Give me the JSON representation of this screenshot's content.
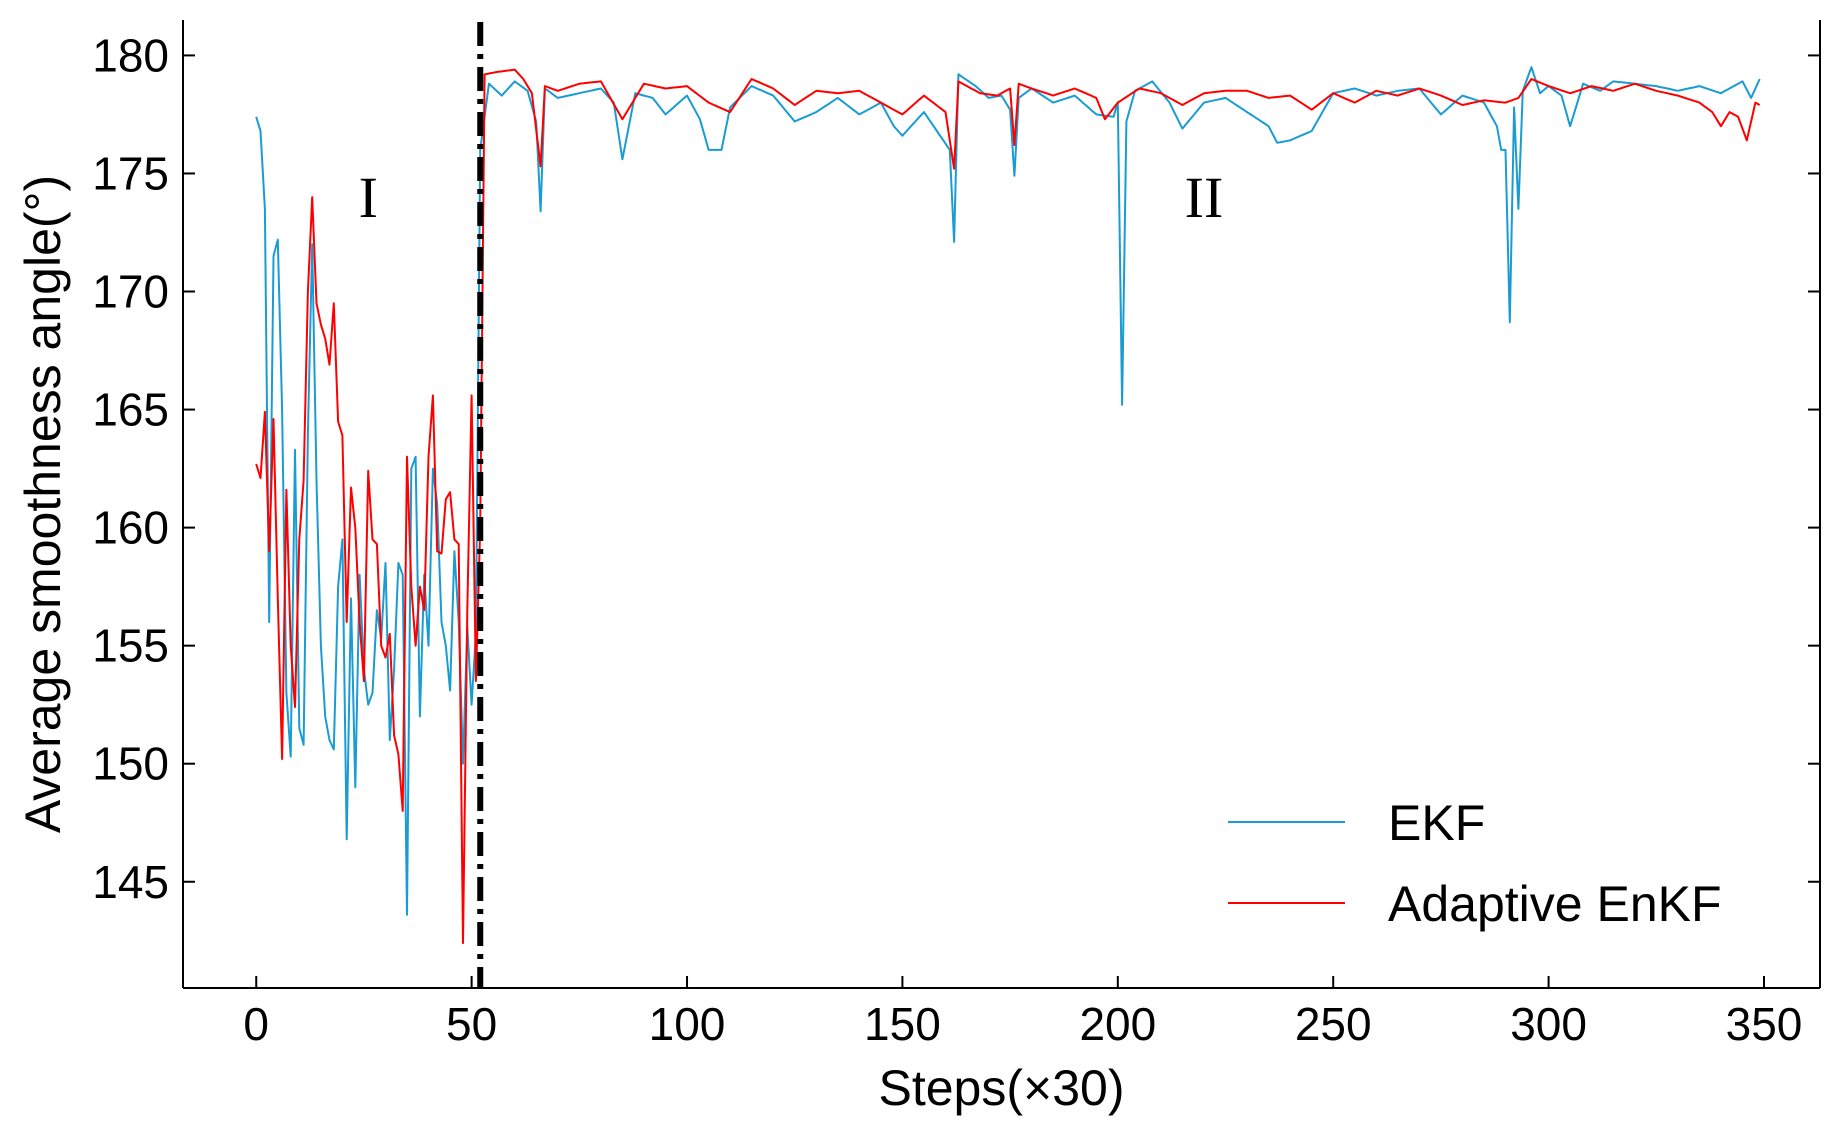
{
  "chart_data": {
    "type": "line",
    "title": "",
    "xlabel": "Steps(×30)",
    "ylabel": "Average smoothness angle(°)",
    "xlim": [
      -17,
      363
    ],
    "ylim": [
      140.5,
      181.5
    ],
    "xticks": [
      0,
      50,
      100,
      150,
      200,
      250,
      300,
      350
    ],
    "yticks": [
      145,
      150,
      155,
      160,
      165,
      170,
      175,
      180
    ],
    "divider_x": 52,
    "legend_position": "bottom-right",
    "region_labels": [
      {
        "text": "I",
        "x": 26,
        "y": 174
      },
      {
        "text": "II",
        "x": 220,
        "y": 174
      }
    ],
    "series": [
      {
        "name": "EKF",
        "color": "#1a9cd3",
        "keypoints": [
          [
            0,
            177.4
          ],
          [
            1,
            176.8
          ],
          [
            2,
            173.5
          ],
          [
            3,
            156.0
          ],
          [
            4,
            171.5
          ],
          [
            5,
            172.2
          ],
          [
            6,
            165.0
          ],
          [
            7,
            153.0
          ],
          [
            8,
            150.3
          ],
          [
            9,
            163.3
          ],
          [
            10,
            151.5
          ],
          [
            11,
            150.8
          ],
          [
            12,
            164.0
          ],
          [
            13,
            172.0
          ],
          [
            14,
            162.0
          ],
          [
            15,
            155.0
          ],
          [
            16,
            152.0
          ],
          [
            17,
            151.0
          ],
          [
            18,
            150.6
          ],
          [
            19,
            157.5
          ],
          [
            20,
            159.5
          ],
          [
            21,
            146.8
          ],
          [
            22,
            157.0
          ],
          [
            23,
            149.0
          ],
          [
            24,
            158.0
          ],
          [
            25,
            154.0
          ],
          [
            26,
            152.5
          ],
          [
            27,
            153.0
          ],
          [
            28,
            156.5
          ],
          [
            29,
            155.3
          ],
          [
            30,
            158.5
          ],
          [
            31,
            151.0
          ],
          [
            32,
            154.0
          ],
          [
            33,
            158.5
          ],
          [
            34,
            158.0
          ],
          [
            35,
            143.6
          ],
          [
            36,
            162.5
          ],
          [
            37,
            163.0
          ],
          [
            38,
            152.0
          ],
          [
            39,
            158.0
          ],
          [
            40,
            155.0
          ],
          [
            41,
            162.5
          ],
          [
            42,
            161.0
          ],
          [
            43,
            156.0
          ],
          [
            44,
            155.0
          ],
          [
            45,
            153.1
          ],
          [
            46,
            159.0
          ],
          [
            47,
            156.0
          ],
          [
            48,
            150.0
          ],
          [
            49,
            155.8
          ],
          [
            50,
            152.5
          ],
          [
            51,
            155.5
          ],
          [
            52,
            176.0
          ],
          [
            54,
            178.8
          ],
          [
            57,
            178.3
          ],
          [
            60,
            178.9
          ],
          [
            63,
            178.5
          ],
          [
            65,
            177.2
          ],
          [
            66,
            173.4
          ],
          [
            67,
            178.6
          ],
          [
            70,
            178.2
          ],
          [
            75,
            178.4
          ],
          [
            80,
            178.6
          ],
          [
            83,
            178.0
          ],
          [
            85,
            175.6
          ],
          [
            88,
            178.4
          ],
          [
            92,
            178.2
          ],
          [
            95,
            177.5
          ],
          [
            100,
            178.3
          ],
          [
            103,
            177.3
          ],
          [
            105,
            176.0
          ],
          [
            108,
            176.0
          ],
          [
            110,
            177.8
          ],
          [
            115,
            178.7
          ],
          [
            120,
            178.3
          ],
          [
            125,
            177.2
          ],
          [
            130,
            177.6
          ],
          [
            135,
            178.2
          ],
          [
            140,
            177.5
          ],
          [
            145,
            178.0
          ],
          [
            148,
            177.0
          ],
          [
            150,
            176.6
          ],
          [
            155,
            177.6
          ],
          [
            158,
            176.8
          ],
          [
            161,
            176.0
          ],
          [
            162,
            172.1
          ],
          [
            163,
            179.2
          ],
          [
            167,
            178.7
          ],
          [
            170,
            178.2
          ],
          [
            173,
            178.3
          ],
          [
            175,
            177.7
          ],
          [
            176,
            174.9
          ],
          [
            177,
            178.2
          ],
          [
            180,
            178.6
          ],
          [
            185,
            178.0
          ],
          [
            190,
            178.3
          ],
          [
            195,
            177.5
          ],
          [
            199,
            177.4
          ],
          [
            200,
            178.0
          ],
          [
            201,
            165.2
          ],
          [
            202,
            177.2
          ],
          [
            204,
            178.5
          ],
          [
            208,
            178.9
          ],
          [
            212,
            178.0
          ],
          [
            215,
            176.9
          ],
          [
            220,
            178.0
          ],
          [
            225,
            178.2
          ],
          [
            230,
            177.6
          ],
          [
            235,
            177.0
          ],
          [
            237,
            176.3
          ],
          [
            240,
            176.4
          ],
          [
            245,
            176.8
          ],
          [
            250,
            178.4
          ],
          [
            255,
            178.6
          ],
          [
            260,
            178.3
          ],
          [
            265,
            178.5
          ],
          [
            270,
            178.6
          ],
          [
            275,
            177.5
          ],
          [
            280,
            178.3
          ],
          [
            285,
            178.0
          ],
          [
            288,
            177.0
          ],
          [
            289,
            176.0
          ],
          [
            290,
            176.0
          ],
          [
            291,
            168.7
          ],
          [
            292,
            177.8
          ],
          [
            293,
            173.5
          ],
          [
            294,
            178.5
          ],
          [
            296,
            179.5
          ],
          [
            298,
            178.4
          ],
          [
            300,
            178.7
          ],
          [
            303,
            178.3
          ],
          [
            305,
            177.0
          ],
          [
            308,
            178.8
          ],
          [
            312,
            178.5
          ],
          [
            315,
            178.9
          ],
          [
            320,
            178.8
          ],
          [
            325,
            178.7
          ],
          [
            330,
            178.5
          ],
          [
            335,
            178.7
          ],
          [
            340,
            178.4
          ],
          [
            345,
            178.9
          ],
          [
            347,
            178.2
          ],
          [
            349,
            179.0
          ]
        ]
      },
      {
        "name": "Adaptive EnKF",
        "color": "#ff0000",
        "keypoints": [
          [
            0,
            162.7
          ],
          [
            1,
            162.1
          ],
          [
            2,
            164.9
          ],
          [
            3,
            159.0
          ],
          [
            4,
            164.6
          ],
          [
            5,
            157.0
          ],
          [
            6,
            150.2
          ],
          [
            7,
            161.6
          ],
          [
            8,
            155.0
          ],
          [
            9,
            152.4
          ],
          [
            10,
            159.5
          ],
          [
            11,
            162.0
          ],
          [
            12,
            170.0
          ],
          [
            13,
            174.0
          ],
          [
            14,
            169.5
          ],
          [
            15,
            168.6
          ],
          [
            16,
            168.0
          ],
          [
            17,
            166.9
          ],
          [
            18,
            169.5
          ],
          [
            19,
            164.5
          ],
          [
            20,
            163.9
          ],
          [
            21,
            156.0
          ],
          [
            22,
            161.7
          ],
          [
            23,
            160.0
          ],
          [
            24,
            156.0
          ],
          [
            25,
            153.5
          ],
          [
            26,
            162.4
          ],
          [
            27,
            159.5
          ],
          [
            28,
            159.3
          ],
          [
            29,
            155.0
          ],
          [
            30,
            154.5
          ],
          [
            31,
            155.5
          ],
          [
            32,
            151.2
          ],
          [
            33,
            150.4
          ],
          [
            34,
            148.0
          ],
          [
            35,
            163.0
          ],
          [
            36,
            157.5
          ],
          [
            37,
            155.0
          ],
          [
            38,
            157.5
          ],
          [
            39,
            156.5
          ],
          [
            40,
            163.0
          ],
          [
            41,
            165.6
          ],
          [
            42,
            159.0
          ],
          [
            43,
            158.9
          ],
          [
            44,
            161.2
          ],
          [
            45,
            161.5
          ],
          [
            46,
            159.5
          ],
          [
            47,
            159.3
          ],
          [
            48,
            142.4
          ],
          [
            49,
            156.5
          ],
          [
            50,
            165.6
          ],
          [
            51,
            153.5
          ],
          [
            52,
            160.0
          ],
          [
            53,
            179.2
          ],
          [
            56,
            179.3
          ],
          [
            60,
            179.4
          ],
          [
            62,
            179.0
          ],
          [
            64,
            178.4
          ],
          [
            66,
            175.3
          ],
          [
            67,
            178.7
          ],
          [
            70,
            178.5
          ],
          [
            75,
            178.8
          ],
          [
            80,
            178.9
          ],
          [
            85,
            177.3
          ],
          [
            90,
            178.8
          ],
          [
            95,
            178.6
          ],
          [
            100,
            178.7
          ],
          [
            105,
            178.0
          ],
          [
            110,
            177.6
          ],
          [
            115,
            179.0
          ],
          [
            120,
            178.6
          ],
          [
            125,
            177.9
          ],
          [
            130,
            178.5
          ],
          [
            135,
            178.4
          ],
          [
            140,
            178.5
          ],
          [
            145,
            178.0
          ],
          [
            150,
            177.5
          ],
          [
            155,
            178.3
          ],
          [
            160,
            177.6
          ],
          [
            162,
            175.2
          ],
          [
            163,
            178.9
          ],
          [
            168,
            178.4
          ],
          [
            172,
            178.3
          ],
          [
            175,
            178.6
          ],
          [
            176,
            176.2
          ],
          [
            177,
            178.8
          ],
          [
            180,
            178.6
          ],
          [
            185,
            178.3
          ],
          [
            190,
            178.6
          ],
          [
            195,
            178.2
          ],
          [
            197,
            177.3
          ],
          [
            200,
            178.0
          ],
          [
            205,
            178.6
          ],
          [
            210,
            178.4
          ],
          [
            215,
            177.9
          ],
          [
            220,
            178.4
          ],
          [
            225,
            178.5
          ],
          [
            230,
            178.5
          ],
          [
            235,
            178.2
          ],
          [
            240,
            178.3
          ],
          [
            245,
            177.7
          ],
          [
            250,
            178.4
          ],
          [
            255,
            178.0
          ],
          [
            260,
            178.5
          ],
          [
            265,
            178.3
          ],
          [
            270,
            178.6
          ],
          [
            275,
            178.3
          ],
          [
            280,
            177.9
          ],
          [
            285,
            178.1
          ],
          [
            290,
            178.0
          ],
          [
            293,
            178.2
          ],
          [
            296,
            179.0
          ],
          [
            300,
            178.7
          ],
          [
            305,
            178.4
          ],
          [
            310,
            178.7
          ],
          [
            315,
            178.5
          ],
          [
            320,
            178.8
          ],
          [
            325,
            178.5
          ],
          [
            330,
            178.3
          ],
          [
            335,
            178.0
          ],
          [
            338,
            177.6
          ],
          [
            340,
            177.0
          ],
          [
            342,
            177.6
          ],
          [
            344,
            177.4
          ],
          [
            346,
            176.4
          ],
          [
            348,
            178.0
          ],
          [
            349,
            177.9
          ]
        ]
      }
    ]
  }
}
